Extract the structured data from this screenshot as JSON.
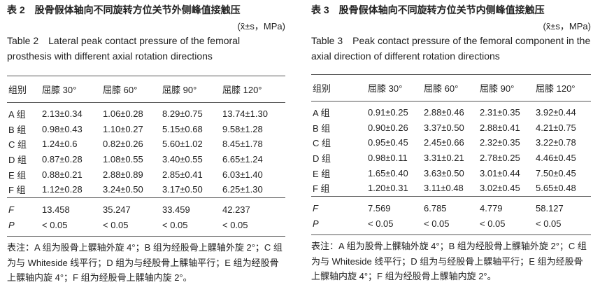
{
  "tables": [
    {
      "title_cn": "表 2　股骨假体轴向不同旋转方位关节外侧峰值接触压",
      "unit": "(x̄±s，MPa)",
      "title_en": "Table 2　Lateral peak contact pressure of the femoral prosthesis with different axial rotation directions",
      "header": [
        "组别",
        "屈膝 30°",
        "屈膝 60°",
        "屈膝 90°",
        "屈膝 120°"
      ],
      "rows": [
        [
          "A 组",
          "2.13±0.34",
          "1.06±0.28",
          "8.29±0.75",
          "13.74±1.30"
        ],
        [
          "B 组",
          "0.98±0.43",
          "1.10±0.27",
          "5.15±0.68",
          "9.58±1.28"
        ],
        [
          "C 组",
          "1.24±0.6",
          "0.82±0.26",
          "5.60±1.02",
          "8.45±1.78"
        ],
        [
          "D 组",
          "0.87±0.28",
          "1.08±0.55",
          "3.40±0.55",
          "6.65±1.24"
        ],
        [
          "E 组",
          "0.88±0.21",
          "2.88±0.89",
          "2.85±0.41",
          "6.03±1.40"
        ],
        [
          "F 组",
          "1.12±0.28",
          "3.24±0.50",
          "3.17±0.50",
          "6.25±1.30"
        ]
      ],
      "stats": [
        [
          "F",
          "13.458",
          "35.247",
          "33.459",
          "42.237"
        ],
        [
          "P",
          "< 0.05",
          "< 0.05",
          "< 0.05",
          "< 0.05"
        ]
      ],
      "note": "表注：A 组为股骨上髁轴外旋 4°；B 组为经股骨上髁轴外旋 2°；C 组为与 Whiteside 线平行；D 组为与经股骨上髁轴平行；E 组为经股骨上髁轴内旋 4°；F 组为经股骨上髁轴内旋 2°。"
    },
    {
      "title_cn": "表 3　股骨假体轴向不同旋转方位关节内侧峰值接触压",
      "unit": "(x̄±s，MPa)",
      "title_en": "Table 3　Peak contact pressure of the femoral component in the axial direction of different rotation directions",
      "header": [
        "组别",
        "屈膝 30°",
        "屈膝 60°",
        "屈膝 90°",
        "屈膝 120°"
      ],
      "rows": [
        [
          "A 组",
          "0.91±0.25",
          "2.88±0.46",
          "2.31±0.35",
          "3.92±0.44"
        ],
        [
          "B 组",
          "0.90±0.26",
          "3.37±0.50",
          "2.88±0.41",
          "4.21±0.75"
        ],
        [
          "C 组",
          "0.95±0.45",
          "2.45±0.66",
          "2.32±0.35",
          "3.22±0.78"
        ],
        [
          "D 组",
          "0.98±0.11",
          "3.31±0.21",
          "2.78±0.25",
          "4.46±0.45"
        ],
        [
          "E 组",
          "1.65±0.40",
          "3.63±0.50",
          "3.01±0.44",
          "7.50±0.45"
        ],
        [
          "F 组",
          "1.20±0.31",
          "3.11±0.48",
          "3.02±0.45",
          "5.65±0.48"
        ]
      ],
      "stats": [
        [
          "F",
          "7.569",
          "6.785",
          "4.779",
          "58.127"
        ],
        [
          "P",
          "< 0.05",
          "< 0.05",
          "< 0.05",
          "< 0.05"
        ]
      ],
      "note": "表注：A 组为股骨上髁轴外旋 4°；B 组为经股骨上髁轴外旋 2°；C 组为与 Whiteside 线平行；D 组为与经股骨上髁轴平行；E 组为经股骨上髁轴内旋 4°；F 组为经股骨上髁轴内旋 2°。"
    }
  ]
}
